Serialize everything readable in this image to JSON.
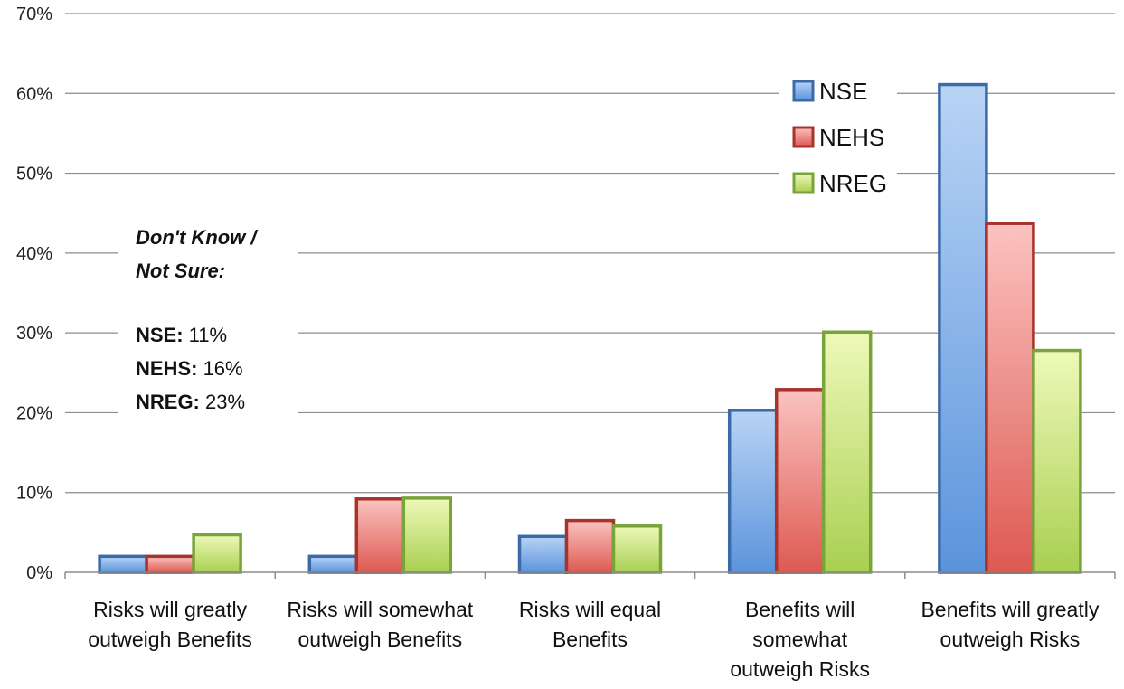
{
  "chart_data": {
    "type": "bar",
    "categories": [
      [
        "Risks will greatly",
        "outweigh Benefits"
      ],
      [
        "Risks will somewhat",
        "outweigh Benefits"
      ],
      [
        "Risks will equal",
        "Benefits"
      ],
      [
        "Benefits will",
        "somewhat",
        "outweigh Risks"
      ],
      [
        "Benefits will greatly",
        "outweigh Risks"
      ]
    ],
    "series": [
      {
        "name": "NSE",
        "values": [
          2,
          2,
          4.5,
          20.3,
          61.1
        ]
      },
      {
        "name": "NEHS",
        "values": [
          2,
          9.2,
          6.5,
          22.9,
          43.7
        ]
      },
      {
        "name": "NREG",
        "values": [
          4.7,
          9.3,
          5.8,
          30.1,
          27.8
        ]
      }
    ],
    "ylim": [
      0,
      70
    ],
    "yticks": [
      "0%",
      "10%",
      "20%",
      "30%",
      "40%",
      "50%",
      "60%",
      "70%"
    ],
    "grid": true,
    "legend_position": "top-right",
    "annotation": {
      "title_line1": "Don't Know /",
      "title_line2": "Not Sure:",
      "lines": [
        {
          "label": "NSE:",
          "value": " 11%"
        },
        {
          "label": "NEHS:",
          "value": " 16%"
        },
        {
          "label": "NREG:",
          "value": " 23%"
        }
      ]
    },
    "colors": {
      "NSE": {
        "fill_top": "#b9d4f5",
        "fill_bottom": "#5b94dc",
        "stroke": "#3c6aa8"
      },
      "NEHS": {
        "fill_top": "#fbc3c0",
        "fill_bottom": "#dd5a52",
        "stroke": "#a8322c"
      },
      "NREG": {
        "fill_top": "#eef9b8",
        "fill_bottom": "#a9cf52",
        "stroke": "#79a43a"
      }
    }
  }
}
